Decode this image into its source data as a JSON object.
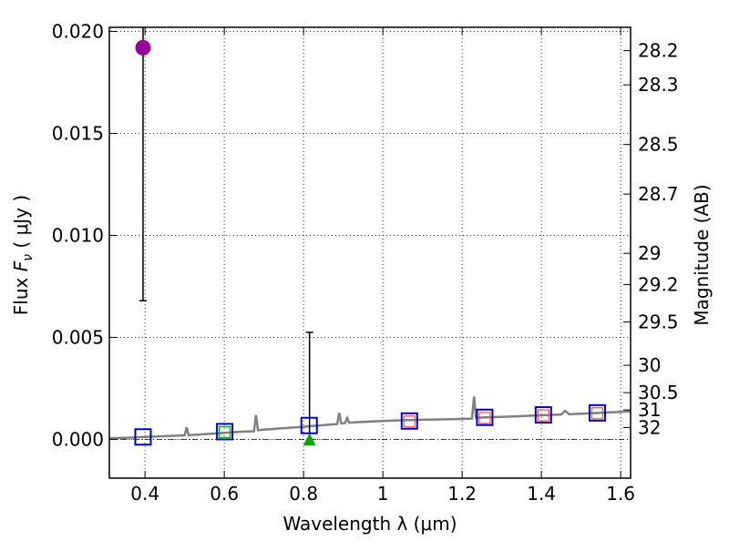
{
  "chart_data": {
    "type": "scatter",
    "title": "",
    "xlabel": "Wavelength  λ (μm)",
    "ylabel": "Flux  F_ν  ( μJy )",
    "ylabel_parts": {
      "prefix": "Flux  ",
      "symbol": "F",
      "subscript": "ν",
      "suffix": "  ( μJy )"
    },
    "y2label": "Magnitude (AB)",
    "xlim": [
      0.31,
      1.625
    ],
    "ylim": [
      -0.0019,
      0.0202
    ],
    "grid": true,
    "x_ticks": [
      {
        "value": 0.4,
        "label": "0.4"
      },
      {
        "value": 0.6,
        "label": "0.6"
      },
      {
        "value": 0.8,
        "label": "0.8"
      },
      {
        "value": 1.0,
        "label": "1"
      },
      {
        "value": 1.2,
        "label": "1.2"
      },
      {
        "value": 1.4,
        "label": "1.4"
      },
      {
        "value": 1.6,
        "label": "1.6"
      }
    ],
    "y_ticks": [
      {
        "value": 0.0,
        "label": "0.000"
      },
      {
        "value": 0.005,
        "label": "0.005"
      },
      {
        "value": 0.01,
        "label": "0.010"
      },
      {
        "value": 0.015,
        "label": "0.015"
      },
      {
        "value": 0.02,
        "label": "0.020"
      }
    ],
    "mag_ticks": [
      {
        "mag": 28.2,
        "label": "28.2"
      },
      {
        "mag": 28.3,
        "label": "28.3"
      },
      {
        "mag": 28.5,
        "label": "28.5"
      },
      {
        "mag": 28.7,
        "label": "28.7"
      },
      {
        "mag": 29,
        "label": "29"
      },
      {
        "mag": 29.2,
        "label": "29.2"
      },
      {
        "mag": 29.5,
        "label": "29.5"
      },
      {
        "mag": 30,
        "label": "30"
      },
      {
        "mag": 30.5,
        "label": "30.5"
      },
      {
        "mag": 31,
        "label": "31"
      },
      {
        "mag": 32,
        "label": "32"
      }
    ],
    "observed_point": {
      "x": 0.395,
      "y": 0.0192,
      "yerr_low": 0.0068,
      "yerr_high": 0.0202,
      "color": "#990099"
    },
    "upper_limit_point": {
      "x": 0.815,
      "y": 0.0,
      "yerr_high": 0.00525,
      "color": "#00aa00"
    },
    "model_photometry": [
      {
        "x": 0.395,
        "y": 0.00012
      },
      {
        "x": 0.601,
        "y": 0.00038
      },
      {
        "x": 0.814,
        "y": 0.00068
      },
      {
        "x": 1.067,
        "y": 0.0009
      },
      {
        "x": 1.257,
        "y": 0.00108
      },
      {
        "x": 1.405,
        "y": 0.0012
      },
      {
        "x": 1.541,
        "y": 0.0013
      }
    ],
    "observed_photometry_inner": [
      {
        "x": 0.601,
        "y": 0.00036,
        "color": "#00aa00"
      },
      {
        "x": 1.067,
        "y": 0.00088,
        "color": "#ff4444"
      },
      {
        "x": 1.257,
        "y": 0.00105,
        "color": "#ff4444"
      },
      {
        "x": 1.405,
        "y": 0.00118,
        "color": "#ff4444"
      },
      {
        "x": 1.541,
        "y": 0.00128,
        "color": "#ff4444"
      }
    ],
    "model_spectrum": {
      "color": "#808080",
      "x": [
        0.31,
        0.35,
        0.4,
        0.45,
        0.5,
        0.505,
        0.51,
        0.515,
        0.55,
        0.6,
        0.65,
        0.675,
        0.68,
        0.685,
        0.7,
        0.75,
        0.8,
        0.85,
        0.885,
        0.89,
        0.895,
        0.905,
        0.91,
        0.915,
        0.95,
        1.0,
        1.05,
        1.1,
        1.15,
        1.2,
        1.225,
        1.23,
        1.235,
        1.26,
        1.3,
        1.35,
        1.4,
        1.45,
        1.46,
        1.47,
        1.5,
        1.55,
        1.6,
        1.625
      ],
      "y": [
        5e-05,
        8e-05,
        0.00012,
        0.00016,
        0.0002,
        0.0006,
        0.0002,
        0.00021,
        0.00025,
        0.00032,
        0.00038,
        0.0004,
        0.0012,
        0.00045,
        0.00048,
        0.00055,
        0.00062,
        0.0007,
        0.00075,
        0.0013,
        0.00078,
        0.0008,
        0.00105,
        0.00082,
        0.00086,
        0.0009,
        0.00094,
        0.00096,
        0.00098,
        0.001,
        0.00102,
        0.0021,
        0.00105,
        0.00108,
        0.0011,
        0.00114,
        0.00118,
        0.00122,
        0.0014,
        0.00123,
        0.00126,
        0.0013,
        0.00135,
        0.00138
      ]
    }
  }
}
